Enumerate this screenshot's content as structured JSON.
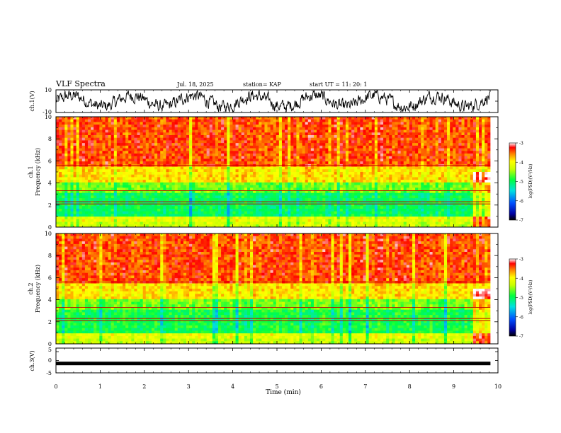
{
  "header": {
    "title": "VLF Spectra",
    "date": "Jul. 18, 2025",
    "station": "station= KAP",
    "start_ut": "start UT =  11: 20: 1"
  },
  "chart_data": [
    {
      "type": "line",
      "name": "ch1-voltage",
      "ylabel": "ch.1(V)",
      "ylim": [
        -10,
        10
      ],
      "ytick_labels": [
        "10",
        "-10"
      ],
      "x_range_min": [
        0,
        9.83
      ],
      "description_values": "noisy trace between about -8 and 8 V"
    },
    {
      "type": "heatmap",
      "name": "ch1-spectrogram",
      "ylabel": "ch.1",
      "ylabel2": "Frequency (kHz)",
      "ylim": [
        0,
        10
      ],
      "ytick_labels": [
        "0",
        "2",
        "4",
        "6",
        "8",
        "10"
      ],
      "colorbar": {
        "min": -7,
        "max": -3,
        "tick_labels": [
          "-3",
          "-4",
          "-5",
          "-6",
          "-7"
        ],
        "label": "log(PSD)(V²/Hz)"
      }
    },
    {
      "type": "heatmap",
      "name": "ch2-spectrogram",
      "ylabel": "ch.2",
      "ylabel2": "Frequency (kHz)",
      "ylim": [
        0,
        10
      ],
      "ytick_labels": [
        "0",
        "2",
        "4",
        "6",
        "8",
        "10"
      ],
      "colorbar": {
        "min": -7,
        "max": -3,
        "tick_labels": [
          "-3",
          "-4",
          "-5",
          "-6",
          "-7"
        ],
        "label": "log(PSD)(V²/Hz)"
      }
    },
    {
      "type": "line",
      "name": "ch3-voltage",
      "ylabel": "ch.3(V)",
      "ylim": [
        -5,
        5
      ],
      "ytick_labels": [
        "5",
        "0",
        "-5"
      ],
      "constant_value": -1.2
    }
  ],
  "xaxis": {
    "label": "Time (min)",
    "range": [
      0,
      10
    ],
    "tick_labels": [
      "0",
      "1",
      "2",
      "3",
      "4",
      "5",
      "6",
      "7",
      "8",
      "9",
      "10"
    ]
  }
}
